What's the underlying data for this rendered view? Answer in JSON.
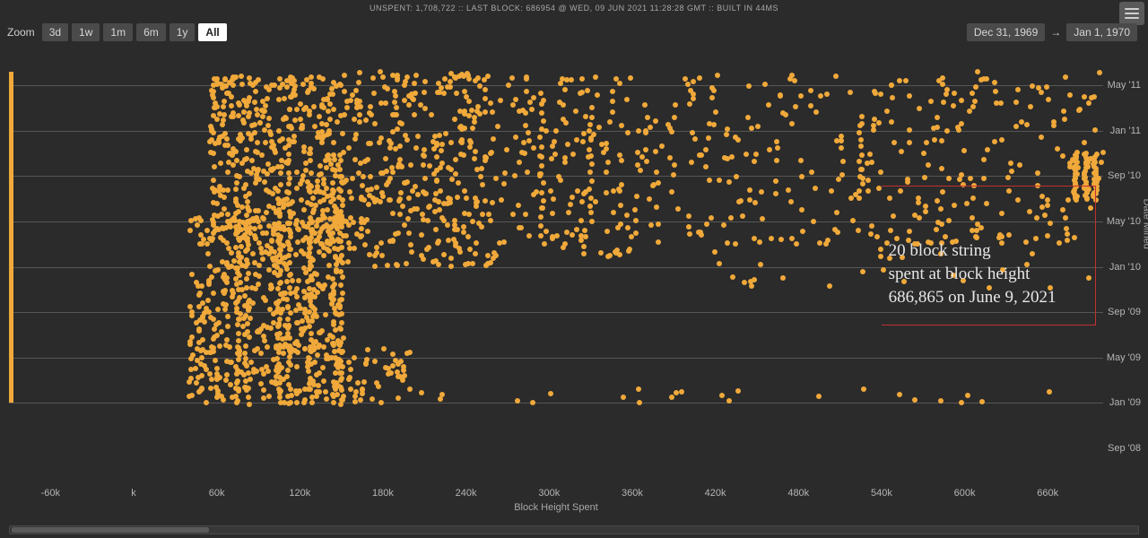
{
  "status_bar": "UNSPENT: 1,708,722 :: LAST BLOCK: 686954 @ WED, 09 JUN 2021 11:28:28 GMT :: BUILT IN 44MS",
  "zoom": {
    "label": "Zoom",
    "buttons": [
      "3d",
      "1w",
      "1m",
      "6m",
      "1y",
      "All"
    ],
    "active": "All"
  },
  "date_range": {
    "from": "Dec 31, 1969",
    "to": "Jan 1, 1970",
    "arrow": "→"
  },
  "chart": {
    "type": "scatter",
    "background_color": "#2b2b2b",
    "grid_color": "#565656",
    "dot_color": "#f0a93a",
    "dot_radius": 3,
    "left_bar_color": "#f0a93a",
    "x_label": "Block Height Spent",
    "y_label": "Date Mined",
    "x_ticks": [
      {
        "value": -60,
        "label": "-60k"
      },
      {
        "value": 0,
        "label": "k"
      },
      {
        "value": 60,
        "label": "60k"
      },
      {
        "value": 120,
        "label": "120k"
      },
      {
        "value": 180,
        "label": "180k"
      },
      {
        "value": 240,
        "label": "240k"
      },
      {
        "value": 300,
        "label": "300k"
      },
      {
        "value": 360,
        "label": "360k"
      },
      {
        "value": 420,
        "label": "420k"
      },
      {
        "value": 480,
        "label": "480k"
      },
      {
        "value": 540,
        "label": "540k"
      },
      {
        "value": 600,
        "label": "600k"
      },
      {
        "value": 660,
        "label": "660k"
      }
    ],
    "x_range": [
      -90,
      700
    ],
    "y_ticks": [
      {
        "value": 0,
        "label": "Sep '08"
      },
      {
        "value": 1,
        "label": "Jan '09"
      },
      {
        "value": 2,
        "label": "May '09"
      },
      {
        "value": 3,
        "label": "Sep '09"
      },
      {
        "value": 4,
        "label": "Jan '10"
      },
      {
        "value": 5,
        "label": "May '10"
      },
      {
        "value": 6,
        "label": "Sep '10"
      },
      {
        "value": 7,
        "label": "Jan '11"
      },
      {
        "value": 8,
        "label": "May '11"
      }
    ],
    "y_range": [
      0,
      8.5
    ],
    "annotation": {
      "text_lines": [
        "20 block string",
        "spent at block height",
        "686,865 on June 9, 2021"
      ],
      "box_color": "#c43030",
      "text_color": "#e6e6e6",
      "font_size": 19
    },
    "clusters": [
      {
        "x": [
          40,
          150
        ],
        "y": [
          1.0,
          5.2
        ],
        "n": 520,
        "spread": 1.0
      },
      {
        "x": [
          55,
          150
        ],
        "y": [
          4.5,
          8.2
        ],
        "n": 420,
        "spread": 1.0
      },
      {
        "x": [
          150,
          260
        ],
        "y": [
          4.0,
          8.3
        ],
        "n": 360,
        "spread": 1.0
      },
      {
        "x": [
          260,
          420
        ],
        "y": [
          4.2,
          8.2
        ],
        "n": 220,
        "spread": 1.1
      },
      {
        "x": [
          420,
          700
        ],
        "y": [
          4.5,
          8.3
        ],
        "n": 260,
        "spread": 1.1
      },
      {
        "x": [
          140,
          200
        ],
        "y": [
          1.0,
          2.2
        ],
        "n": 60,
        "spread": 0.8
      },
      {
        "x": [
          200,
          700
        ],
        "y": [
          1.0,
          1.3
        ],
        "n": 24,
        "spread": 0.5
      },
      {
        "x": [
          420,
          700
        ],
        "y": [
          3.5,
          5.5
        ],
        "n": 50,
        "spread": 1.0
      }
    ],
    "vertical_strips": [
      {
        "x": 75,
        "y": [
          1.0,
          5.5
        ],
        "n": 30
      },
      {
        "x": 82,
        "y": [
          1.0,
          5.6
        ],
        "n": 30
      },
      {
        "x": 105,
        "y": [
          1.0,
          5.8
        ],
        "n": 35
      },
      {
        "x": 112,
        "y": [
          1.0,
          5.8
        ],
        "n": 35
      },
      {
        "x": 128,
        "y": [
          1.0,
          5.8
        ],
        "n": 35
      },
      {
        "x": 145,
        "y": [
          1.0,
          6.5
        ],
        "n": 35
      },
      {
        "x": 150,
        "y": [
          1.0,
          6.5
        ],
        "n": 35
      },
      {
        "x": 295,
        "y": [
          4.5,
          7.8
        ],
        "n": 18
      },
      {
        "x": 330,
        "y": [
          5.0,
          7.5
        ],
        "n": 15
      },
      {
        "x": 525,
        "y": [
          5.5,
          7.3
        ],
        "n": 12
      },
      {
        "x": 680,
        "y": [
          5.5,
          6.5
        ],
        "n": 25
      },
      {
        "x": 688,
        "y": [
          5.5,
          6.5
        ],
        "n": 25
      },
      {
        "x": 694,
        "y": [
          5.5,
          6.5
        ],
        "n": 25
      }
    ]
  }
}
